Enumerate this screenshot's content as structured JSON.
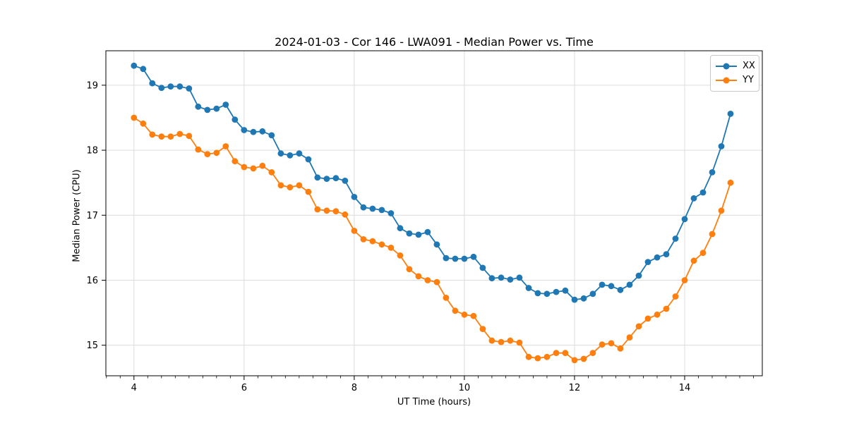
{
  "chart": {
    "title": "2024-01-03 - Cor 146 - LWA091 - Median Power vs. Time",
    "xlabel": "UT Time (hours)",
    "ylabel": "Median Power (CPU)"
  },
  "chart_data": {
    "type": "line",
    "title": "2024-01-03 - Cor 146 - LWA091 - Median Power vs. Time",
    "xlabel": "UT Time (hours)",
    "ylabel": "Median Power (CPU)",
    "xlim": [
      3.49,
      15.41
    ],
    "ylim": [
      14.53,
      19.53
    ],
    "x_major_ticks": [
      4,
      6,
      8,
      10,
      12,
      14
    ],
    "x_minor_tick_step": 0.25,
    "y_major_ticks": [
      15,
      16,
      17,
      18,
      19
    ],
    "grid": true,
    "grid_color": "#dcdcdc",
    "spine_color": "#000000",
    "legend_position": "upper right",
    "marker": "circle",
    "x": [
      4.0,
      4.167,
      4.333,
      4.5,
      4.667,
      4.833,
      5.0,
      5.167,
      5.333,
      5.5,
      5.667,
      5.833,
      6.0,
      6.167,
      6.333,
      6.5,
      6.667,
      6.833,
      7.0,
      7.167,
      7.333,
      7.5,
      7.667,
      7.833,
      8.0,
      8.167,
      8.333,
      8.5,
      8.667,
      8.833,
      9.0,
      9.167,
      9.333,
      9.5,
      9.667,
      9.833,
      10.0,
      10.167,
      10.333,
      10.5,
      10.667,
      10.833,
      11.0,
      11.167,
      11.333,
      11.5,
      11.667,
      11.833,
      12.0,
      12.167,
      12.333,
      12.5,
      12.667,
      12.833,
      13.0,
      13.167,
      13.333,
      13.5,
      13.667,
      13.833,
      14.0,
      14.167,
      14.333,
      14.5,
      14.667,
      14.833
    ],
    "series": [
      {
        "name": "XX",
        "color": "#1f77b4",
        "values": [
          19.3,
          19.25,
          19.03,
          18.96,
          18.98,
          18.98,
          18.95,
          18.67,
          18.62,
          18.64,
          18.7,
          18.47,
          18.31,
          18.28,
          18.29,
          18.23,
          17.95,
          17.92,
          17.95,
          17.86,
          17.58,
          17.56,
          17.57,
          17.53,
          17.28,
          17.12,
          17.1,
          17.08,
          17.03,
          16.8,
          16.72,
          16.7,
          16.74,
          16.55,
          16.34,
          16.33,
          16.33,
          16.36,
          16.19,
          16.03,
          16.04,
          16.01,
          16.04,
          15.88,
          15.8,
          15.79,
          15.82,
          15.84,
          15.7,
          15.72,
          15.79,
          15.93,
          15.91,
          15.85,
          15.93,
          16.07,
          16.28,
          16.35,
          16.4,
          16.64,
          16.94,
          17.26,
          17.35,
          17.66,
          18.06,
          18.56
        ]
      },
      {
        "name": "YY",
        "color": "#ff7f0e",
        "values": [
          18.5,
          18.41,
          18.24,
          18.21,
          18.21,
          18.25,
          18.22,
          18.01,
          17.94,
          17.96,
          18.06,
          17.83,
          17.74,
          17.72,
          17.76,
          17.66,
          17.46,
          17.43,
          17.46,
          17.36,
          17.09,
          17.07,
          17.06,
          17.01,
          16.76,
          16.63,
          16.6,
          16.55,
          16.5,
          16.38,
          16.17,
          16.06,
          16.0,
          15.97,
          15.73,
          15.53,
          15.47,
          15.45,
          15.25,
          15.07,
          15.05,
          15.07,
          15.04,
          14.82,
          14.8,
          14.82,
          14.88,
          14.88,
          14.77,
          14.79,
          14.88,
          15.01,
          15.03,
          14.95,
          15.12,
          15.29,
          15.41,
          15.47,
          15.56,
          15.75,
          16.0,
          16.3,
          16.42,
          16.71,
          17.07,
          17.5
        ]
      }
    ]
  }
}
